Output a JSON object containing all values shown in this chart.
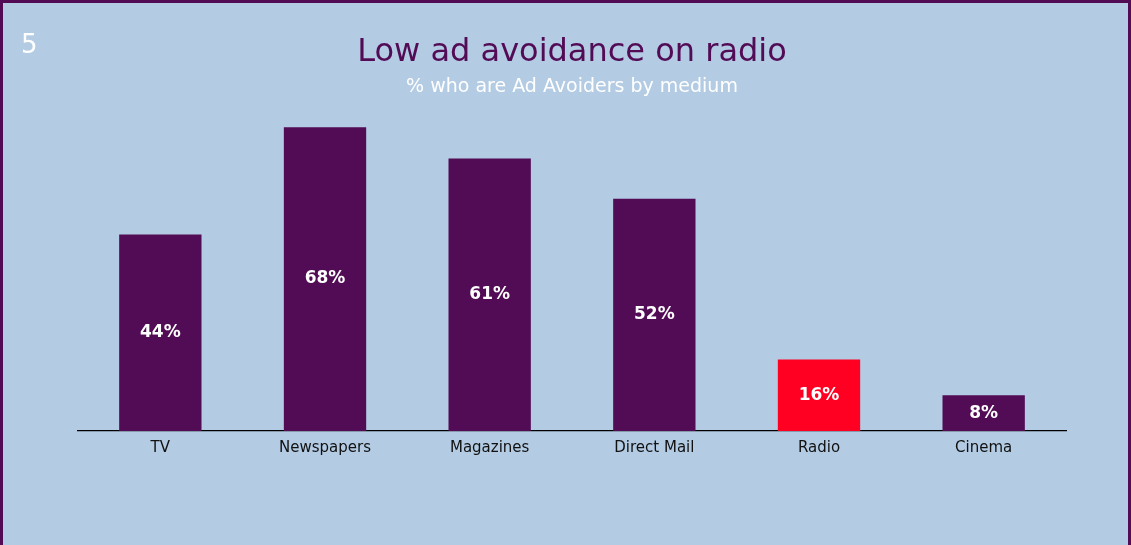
{
  "chart_data": {
    "type": "bar",
    "title": "Low ad avoidance on radio",
    "subtitle": "% who are Ad Avoiders by medium",
    "categories": [
      "TV",
      "Newspapers",
      "Magazines",
      "Direct Mail",
      "Radio",
      "Cinema"
    ],
    "values": [
      44,
      68,
      61,
      52,
      16,
      8
    ],
    "colors": [
      "#520b55",
      "#520b55",
      "#520b55",
      "#520b55",
      "#ff0022",
      "#520b55"
    ],
    "value_labels": [
      "44%",
      "68%",
      "61%",
      "52%",
      "16%",
      "8%"
    ],
    "annotations": [
      "5"
    ],
    "legend": false
  }
}
